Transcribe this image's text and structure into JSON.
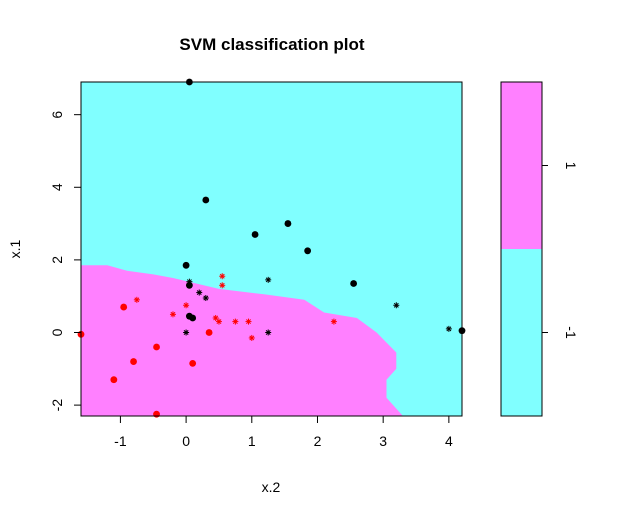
{
  "chart_data": {
    "type": "scatter",
    "title": "SVM classification plot",
    "xlabel": "x.2",
    "ylabel": "x.1",
    "xlim": [
      -1.6,
      4.2
    ],
    "ylim": [
      -2.3,
      6.9
    ],
    "xticks": [
      -1,
      0,
      1,
      2,
      3,
      4
    ],
    "xtick_labels": [
      "-1",
      "0",
      "1",
      "2",
      "3",
      "4"
    ],
    "yticks": [
      -2,
      0,
      2,
      4,
      6
    ],
    "ytick_labels": [
      "-2",
      "0",
      "2",
      "4",
      "6"
    ],
    "grid": false,
    "region_colors": {
      "class_1": "#FF80FF",
      "class_neg1": "#80FFFF"
    },
    "decision_boundary": [
      [
        -1.6,
        1.85
      ],
      [
        -1.2,
        1.85
      ],
      [
        -0.9,
        1.7
      ],
      [
        -0.5,
        1.6
      ],
      [
        -0.2,
        1.5
      ],
      [
        0.5,
        1.2
      ],
      [
        1.2,
        1.05
      ],
      [
        1.8,
        0.9
      ],
      [
        2.1,
        0.55
      ],
      [
        2.6,
        0.4
      ],
      [
        2.9,
        0.0
      ],
      [
        3.2,
        -0.55
      ],
      [
        3.2,
        -1.0
      ],
      [
        3.05,
        -1.3
      ],
      [
        3.05,
        -1.8
      ],
      [
        3.3,
        -2.3
      ]
    ],
    "series": [
      {
        "name": "-1",
        "marker": "support-vector-cross",
        "color": "#000000",
        "points": [
          [
            0.05,
            1.4
          ],
          [
            0.2,
            1.1
          ],
          [
            0.3,
            0.95
          ],
          [
            1.25,
            1.45
          ],
          [
            3.2,
            0.75
          ],
          [
            4.0,
            0.1
          ],
          [
            0.0,
            0.0
          ],
          [
            1.25,
            0.0
          ]
        ]
      },
      {
        "name": "-1",
        "marker": "data-point",
        "color": "#000000",
        "points": [
          [
            0.05,
            6.9
          ],
          [
            0.3,
            3.65
          ],
          [
            1.05,
            2.7
          ],
          [
            1.55,
            3.0
          ],
          [
            1.85,
            2.25
          ],
          [
            0.0,
            1.85
          ],
          [
            0.05,
            1.3
          ],
          [
            0.05,
            0.45
          ],
          [
            0.1,
            0.4
          ],
          [
            2.55,
            1.35
          ],
          [
            4.2,
            0.05
          ]
        ]
      },
      {
        "name": "1",
        "marker": "support-vector-cross",
        "color": "#FF0000",
        "points": [
          [
            -0.75,
            0.9
          ],
          [
            0.0,
            0.75
          ],
          [
            -0.2,
            0.5
          ],
          [
            0.55,
            1.55
          ],
          [
            0.55,
            1.3
          ],
          [
            0.45,
            0.4
          ],
          [
            0.5,
            0.3
          ],
          [
            0.75,
            0.3
          ],
          [
            0.95,
            0.3
          ],
          [
            1.0,
            -0.15
          ],
          [
            2.25,
            0.3
          ]
        ]
      },
      {
        "name": "1",
        "marker": "data-point",
        "color": "#FF0000",
        "points": [
          [
            -0.95,
            0.7
          ],
          [
            -1.6,
            -0.05
          ],
          [
            -0.8,
            -0.8
          ],
          [
            -0.45,
            -0.4
          ],
          [
            -1.1,
            -1.3
          ],
          [
            0.1,
            -0.85
          ],
          [
            0.35,
            0.0
          ],
          [
            -0.45,
            -2.25
          ]
        ]
      }
    ],
    "legend": {
      "type": "colorbar",
      "placement": "right",
      "entries": [
        {
          "label": "1",
          "color": "#FF80FF"
        },
        {
          "label": "-1",
          "color": "#80FFFF"
        }
      ]
    }
  }
}
